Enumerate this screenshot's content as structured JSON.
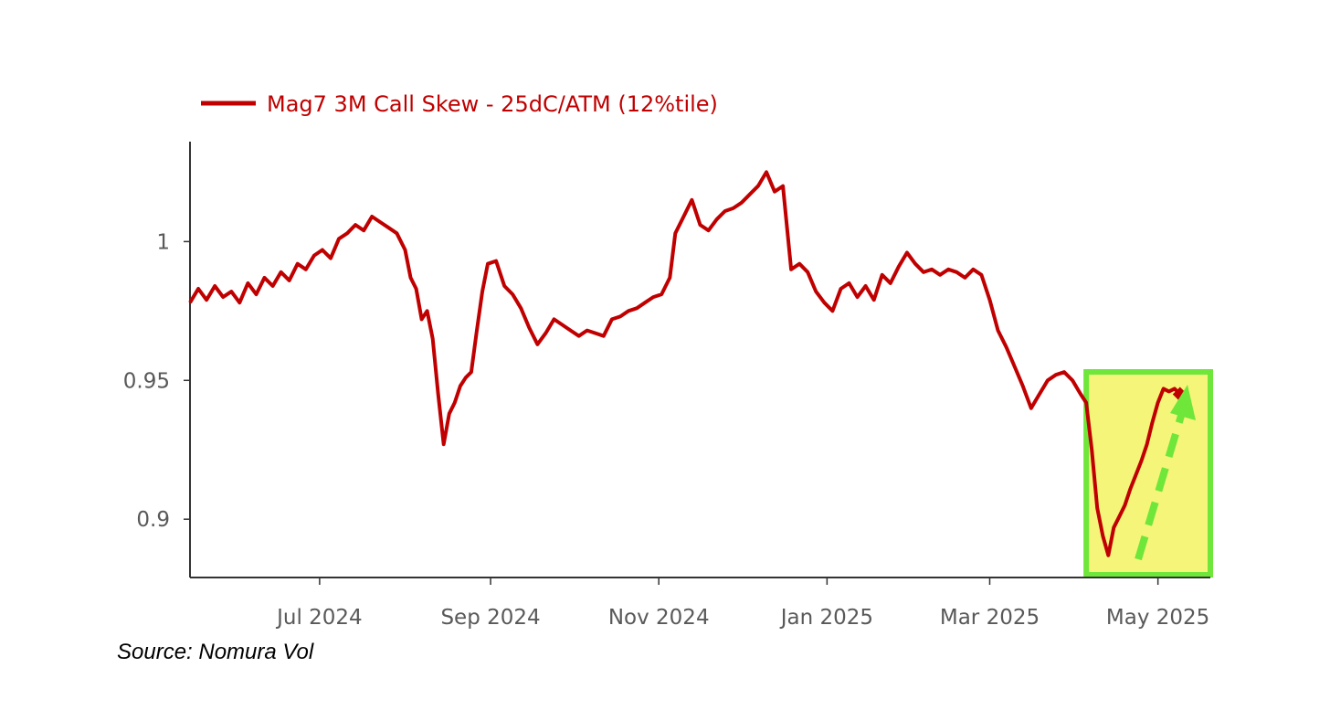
{
  "chart_data": {
    "type": "line",
    "title": "",
    "xlabel": "",
    "ylabel": "",
    "x_ticks": [
      "Jul 2024",
      "Sep 2024",
      "Nov 2024",
      "Jan 2025",
      "Mar 2025",
      "May 2025"
    ],
    "y_ticks": [
      "1",
      "0.95",
      "0.9"
    ],
    "ylim": [
      0.879,
      1.036
    ],
    "xlim": [
      "2024-05-15",
      "2025-05-20"
    ],
    "legend_position": "top-left",
    "colors": {
      "series": "#c00000",
      "highlight_fill": "#f5f57a",
      "highlight_border": "#6fe63a",
      "arrow": "#6fe63a"
    },
    "series": [
      {
        "name": "Mag7 3M Call Skew - 25dC/ATM (12%tile)",
        "points": [
          [
            "2024-05-15",
            0.978
          ],
          [
            "2024-05-18",
            0.983
          ],
          [
            "2024-05-21",
            0.979
          ],
          [
            "2024-05-24",
            0.984
          ],
          [
            "2024-05-27",
            0.98
          ],
          [
            "2024-05-30",
            0.982
          ],
          [
            "2024-06-02",
            0.978
          ],
          [
            "2024-06-05",
            0.985
          ],
          [
            "2024-06-08",
            0.981
          ],
          [
            "2024-06-11",
            0.987
          ],
          [
            "2024-06-14",
            0.984
          ],
          [
            "2024-06-17",
            0.989
          ],
          [
            "2024-06-20",
            0.986
          ],
          [
            "2024-06-23",
            0.992
          ],
          [
            "2024-06-26",
            0.99
          ],
          [
            "2024-06-29",
            0.995
          ],
          [
            "2024-07-02",
            0.997
          ],
          [
            "2024-07-05",
            0.994
          ],
          [
            "2024-07-08",
            1.001
          ],
          [
            "2024-07-11",
            1.003
          ],
          [
            "2024-07-14",
            1.006
          ],
          [
            "2024-07-17",
            1.004
          ],
          [
            "2024-07-20",
            1.009
          ],
          [
            "2024-07-23",
            1.007
          ],
          [
            "2024-07-26",
            1.005
          ],
          [
            "2024-07-29",
            1.003
          ],
          [
            "2024-08-01",
            0.997
          ],
          [
            "2024-08-03",
            0.987
          ],
          [
            "2024-08-05",
            0.983
          ],
          [
            "2024-08-07",
            0.972
          ],
          [
            "2024-08-09",
            0.975
          ],
          [
            "2024-08-11",
            0.965
          ],
          [
            "2024-08-13",
            0.945
          ],
          [
            "2024-08-15",
            0.927
          ],
          [
            "2024-08-17",
            0.938
          ],
          [
            "2024-08-19",
            0.942
          ],
          [
            "2024-08-21",
            0.948
          ],
          [
            "2024-08-23",
            0.951
          ],
          [
            "2024-08-25",
            0.953
          ],
          [
            "2024-08-27",
            0.968
          ],
          [
            "2024-08-29",
            0.982
          ],
          [
            "2024-08-31",
            0.992
          ],
          [
            "2024-09-03",
            0.993
          ],
          [
            "2024-09-06",
            0.984
          ],
          [
            "2024-09-09",
            0.981
          ],
          [
            "2024-09-12",
            0.976
          ],
          [
            "2024-09-15",
            0.969
          ],
          [
            "2024-09-18",
            0.963
          ],
          [
            "2024-09-21",
            0.967
          ],
          [
            "2024-09-24",
            0.972
          ],
          [
            "2024-09-27",
            0.97
          ],
          [
            "2024-09-30",
            0.968
          ],
          [
            "2024-10-03",
            0.966
          ],
          [
            "2024-10-06",
            0.968
          ],
          [
            "2024-10-09",
            0.967
          ],
          [
            "2024-10-12",
            0.966
          ],
          [
            "2024-10-15",
            0.972
          ],
          [
            "2024-10-18",
            0.973
          ],
          [
            "2024-10-21",
            0.975
          ],
          [
            "2024-10-24",
            0.976
          ],
          [
            "2024-10-27",
            0.978
          ],
          [
            "2024-10-30",
            0.98
          ],
          [
            "2024-11-02",
            0.981
          ],
          [
            "2024-11-05",
            0.987
          ],
          [
            "2024-11-07",
            1.003
          ],
          [
            "2024-11-10",
            1.009
          ],
          [
            "2024-11-13",
            1.015
          ],
          [
            "2024-11-16",
            1.006
          ],
          [
            "2024-11-19",
            1.004
          ],
          [
            "2024-11-22",
            1.008
          ],
          [
            "2024-11-25",
            1.011
          ],
          [
            "2024-11-28",
            1.012
          ],
          [
            "2024-12-01",
            1.014
          ],
          [
            "2024-12-04",
            1.017
          ],
          [
            "2024-12-07",
            1.02
          ],
          [
            "2024-12-10",
            1.025
          ],
          [
            "2024-12-13",
            1.018
          ],
          [
            "2024-12-16",
            1.02
          ],
          [
            "2024-12-19",
            0.99
          ],
          [
            "2024-12-22",
            0.992
          ],
          [
            "2024-12-25",
            0.989
          ],
          [
            "2024-12-28",
            0.982
          ],
          [
            "2024-12-31",
            0.978
          ],
          [
            "2025-01-03",
            0.975
          ],
          [
            "2025-01-06",
            0.983
          ],
          [
            "2025-01-09",
            0.985
          ],
          [
            "2025-01-12",
            0.98
          ],
          [
            "2025-01-15",
            0.984
          ],
          [
            "2025-01-18",
            0.979
          ],
          [
            "2025-01-21",
            0.988
          ],
          [
            "2025-01-24",
            0.985
          ],
          [
            "2025-01-27",
            0.991
          ],
          [
            "2025-01-30",
            0.996
          ],
          [
            "2025-02-02",
            0.992
          ],
          [
            "2025-02-05",
            0.989
          ],
          [
            "2025-02-08",
            0.99
          ],
          [
            "2025-02-11",
            0.988
          ],
          [
            "2025-02-14",
            0.99
          ],
          [
            "2025-02-17",
            0.989
          ],
          [
            "2025-02-20",
            0.987
          ],
          [
            "2025-02-23",
            0.99
          ],
          [
            "2025-02-26",
            0.988
          ],
          [
            "2025-03-01",
            0.979
          ],
          [
            "2025-03-04",
            0.968
          ],
          [
            "2025-03-07",
            0.962
          ],
          [
            "2025-03-10",
            0.955
          ],
          [
            "2025-03-13",
            0.948
          ],
          [
            "2025-03-16",
            0.94
          ],
          [
            "2025-03-19",
            0.945
          ],
          [
            "2025-03-22",
            0.95
          ],
          [
            "2025-03-25",
            0.952
          ],
          [
            "2025-03-28",
            0.953
          ],
          [
            "2025-03-31",
            0.95
          ],
          [
            "2025-04-03",
            0.945
          ],
          [
            "2025-04-05",
            0.942
          ],
          [
            "2025-04-07",
            0.925
          ],
          [
            "2025-04-09",
            0.904
          ],
          [
            "2025-04-11",
            0.894
          ],
          [
            "2025-04-13",
            0.887
          ],
          [
            "2025-04-15",
            0.897
          ],
          [
            "2025-04-17",
            0.901
          ],
          [
            "2025-04-19",
            0.905
          ],
          [
            "2025-04-21",
            0.911
          ],
          [
            "2025-04-23",
            0.916
          ],
          [
            "2025-04-25",
            0.921
          ],
          [
            "2025-04-27",
            0.927
          ],
          [
            "2025-04-29",
            0.935
          ],
          [
            "2025-05-01",
            0.942
          ],
          [
            "2025-05-03",
            0.947
          ],
          [
            "2025-05-05",
            0.946
          ],
          [
            "2025-05-07",
            0.947
          ],
          [
            "2025-05-09",
            0.945
          ]
        ]
      }
    ],
    "annotations": {
      "highlight_box": {
        "x_from": "2025-04-05",
        "x_to": "2025-05-20"
      }
    }
  },
  "source": "Source: Nomura Vol"
}
